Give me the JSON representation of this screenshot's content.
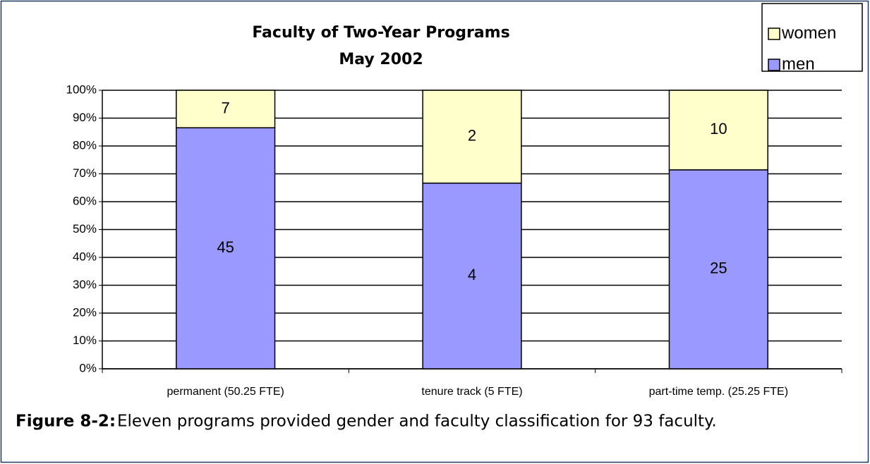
{
  "chart_data": {
    "type": "bar",
    "stacking": "percent",
    "title": [
      "Faculty of Two-Year Programs",
      "May 2002"
    ],
    "categories": [
      "permanent (50.25 FTE)",
      "tenure track (5 FTE)",
      "part-time temp. (25.25 FTE)"
    ],
    "series": [
      {
        "name": "men",
        "color": "#9999ff",
        "values": [
          45,
          4,
          25
        ]
      },
      {
        "name": "women",
        "color": "#ffffcc",
        "values": [
          7,
          2,
          10
        ]
      }
    ],
    "ylim": [
      0,
      100
    ],
    "yticks": [
      {
        "value": 0,
        "label": "0%"
      },
      {
        "value": 10,
        "label": "10%"
      },
      {
        "value": 20,
        "label": "20%"
      },
      {
        "value": 30,
        "label": "30%"
      },
      {
        "value": 40,
        "label": "40%"
      },
      {
        "value": 50,
        "label": "50%"
      },
      {
        "value": 60,
        "label": "60%"
      },
      {
        "value": 70,
        "label": "70%"
      },
      {
        "value": 80,
        "label": "80%"
      },
      {
        "value": 90,
        "label": "90%"
      },
      {
        "value": 100,
        "label": "100%"
      }
    ],
    "grid": true,
    "legend": "top-right"
  },
  "caption": {
    "label": "Figure 8-2:",
    "text": "Eleven programs provided gender and faculty classification for 93 faculty."
  }
}
